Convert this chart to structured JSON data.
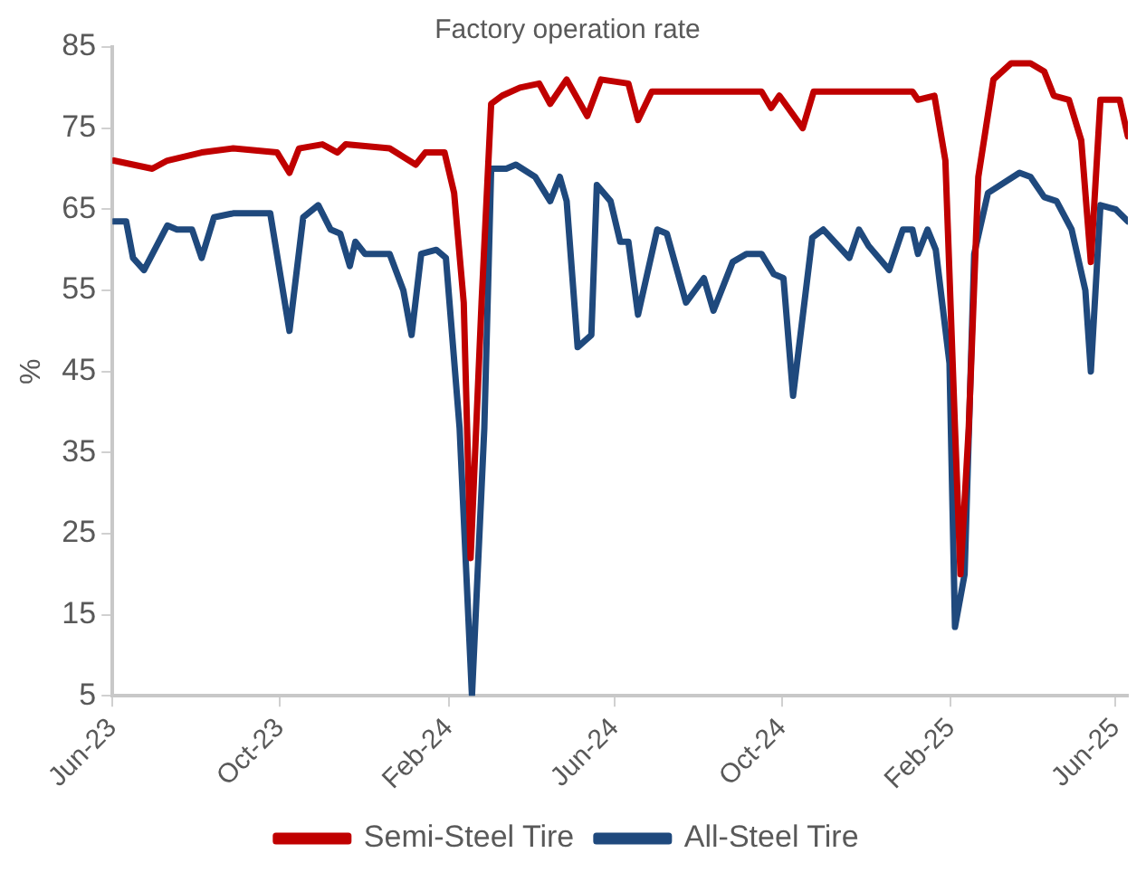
{
  "chart_data": {
    "type": "line",
    "title": "Factory operation rate",
    "ylabel": "%",
    "xlim": [
      "2023-06-01",
      "2025-06-10"
    ],
    "ylim": [
      5,
      85
    ],
    "yticks": [
      5,
      15,
      25,
      35,
      45,
      55,
      65,
      75,
      85
    ],
    "xticks": [
      {
        "value": "2023-06-01",
        "label": "Jun-23"
      },
      {
        "value": "2023-10-01",
        "label": "Oct-23"
      },
      {
        "value": "2024-02-01",
        "label": "Feb-24"
      },
      {
        "value": "2024-06-01",
        "label": "Jun-24"
      },
      {
        "value": "2024-10-01",
        "label": "Oct-24"
      },
      {
        "value": "2025-02-01",
        "label": "Feb-25"
      },
      {
        "value": "2025-06-01",
        "label": "Jun-25"
      }
    ],
    "grid": false,
    "legend": "bottom",
    "marker": "none",
    "line_style": "solid",
    "series": [
      {
        "name": "Semi-Steel Tire",
        "color": "#c00000",
        "x": [
          "2023-06-02",
          "2023-06-16",
          "2023-06-30",
          "2023-07-11",
          "2023-08-05",
          "2023-08-28",
          "2023-09-29",
          "2023-10-08",
          "2023-10-15",
          "2023-11-01",
          "2023-11-12",
          "2023-11-18",
          "2023-12-20",
          "2024-01-08",
          "2024-01-15",
          "2024-01-29",
          "2024-02-05",
          "2024-02-12",
          "2024-02-17",
          "2024-02-25",
          "2024-03-03",
          "2024-03-11",
          "2024-03-24",
          "2024-04-07",
          "2024-04-15",
          "2024-04-27",
          "2024-05-12",
          "2024-05-22",
          "2024-06-11",
          "2024-06-18",
          "2024-06-28",
          "2024-08-05",
          "2024-09-16",
          "2024-09-23",
          "2024-09-29",
          "2024-10-16",
          "2024-10-24",
          "2024-12-03",
          "2025-01-04",
          "2025-01-08",
          "2025-01-20",
          "2025-01-28",
          "2025-02-04",
          "2025-02-08",
          "2025-02-14",
          "2025-02-21",
          "2025-03-04",
          "2025-03-17",
          "2025-03-31",
          "2025-04-10",
          "2025-04-17",
          "2025-04-28",
          "2025-05-07",
          "2025-05-14",
          "2025-05-21",
          "2025-06-04",
          "2025-06-10"
        ],
        "values": [
          71,
          70.5,
          70,
          71,
          72,
          72.5,
          72,
          69.5,
          72.5,
          73,
          72,
          73,
          72.5,
          70.5,
          72,
          72,
          67,
          53.5,
          22,
          53.5,
          78,
          79,
          80,
          80.5,
          78,
          81,
          76.5,
          81,
          80.5,
          76,
          79.5,
          79.5,
          79.5,
          77.5,
          79,
          75,
          79.5,
          79.5,
          79.5,
          78.5,
          79,
          71,
          38,
          20,
          38,
          69,
          81,
          83,
          83,
          82,
          79,
          78.5,
          73.5,
          58.5,
          78.5,
          78.5,
          74
        ]
      },
      {
        "name": "All-Steel Tire",
        "color": "#1f497d",
        "x": [
          "2023-06-02",
          "2023-06-11",
          "2023-06-16",
          "2023-06-24",
          "2023-07-11",
          "2023-07-18",
          "2023-07-29",
          "2023-08-05",
          "2023-08-14",
          "2023-08-28",
          "2023-09-24",
          "2023-10-08",
          "2023-10-18",
          "2023-10-29",
          "2023-11-07",
          "2023-11-14",
          "2023-11-21",
          "2023-11-25",
          "2023-12-02",
          "2023-12-20",
          "2023-12-30",
          "2024-01-05",
          "2024-01-12",
          "2024-01-23",
          "2024-01-30",
          "2024-02-09",
          "2024-02-18",
          "2024-02-27",
          "2024-03-03",
          "2024-03-14",
          "2024-03-21",
          "2024-04-04",
          "2024-04-15",
          "2024-04-22",
          "2024-04-27",
          "2024-05-05",
          "2024-05-15",
          "2024-05-19",
          "2024-05-29",
          "2024-06-05",
          "2024-06-11",
          "2024-06-18",
          "2024-07-02",
          "2024-07-09",
          "2024-07-23",
          "2024-08-05",
          "2024-08-12",
          "2024-08-26",
          "2024-09-05",
          "2024-09-16",
          "2024-09-25",
          "2024-10-02",
          "2024-10-09",
          "2024-10-23",
          "2024-10-31",
          "2024-11-19",
          "2024-11-26",
          "2024-12-03",
          "2024-12-18",
          "2024-12-28",
          "2025-01-04",
          "2025-01-08",
          "2025-01-15",
          "2025-01-21",
          "2025-01-31",
          "2025-02-04",
          "2025-02-11",
          "2025-02-18",
          "2025-02-28",
          "2025-03-23",
          "2025-03-31",
          "2025-04-10",
          "2025-04-19",
          "2025-04-30",
          "2025-05-10",
          "2025-05-14",
          "2025-05-21",
          "2025-06-01",
          "2025-06-10"
        ],
        "values": [
          63.5,
          63.5,
          59,
          57.5,
          63,
          62.5,
          62.5,
          59,
          64,
          64.5,
          64.5,
          50,
          64,
          65.5,
          62.5,
          62,
          58,
          61,
          59.5,
          59.5,
          55,
          49.5,
          59.5,
          60,
          59,
          38,
          5,
          38,
          70,
          70,
          70.5,
          69,
          66,
          69,
          66,
          48,
          49.5,
          68,
          66,
          61,
          61,
          52,
          62.5,
          62,
          53.5,
          56.5,
          52.5,
          58.5,
          59.5,
          59.5,
          57,
          56.5,
          42,
          61.5,
          62.5,
          59,
          62.5,
          60.5,
          57.5,
          62.5,
          62.5,
          59.5,
          62.5,
          60,
          46,
          13.5,
          20,
          59.5,
          67,
          69.5,
          69,
          66.5,
          66,
          62.5,
          55,
          45,
          65.5,
          65,
          63.5
        ]
      }
    ]
  }
}
